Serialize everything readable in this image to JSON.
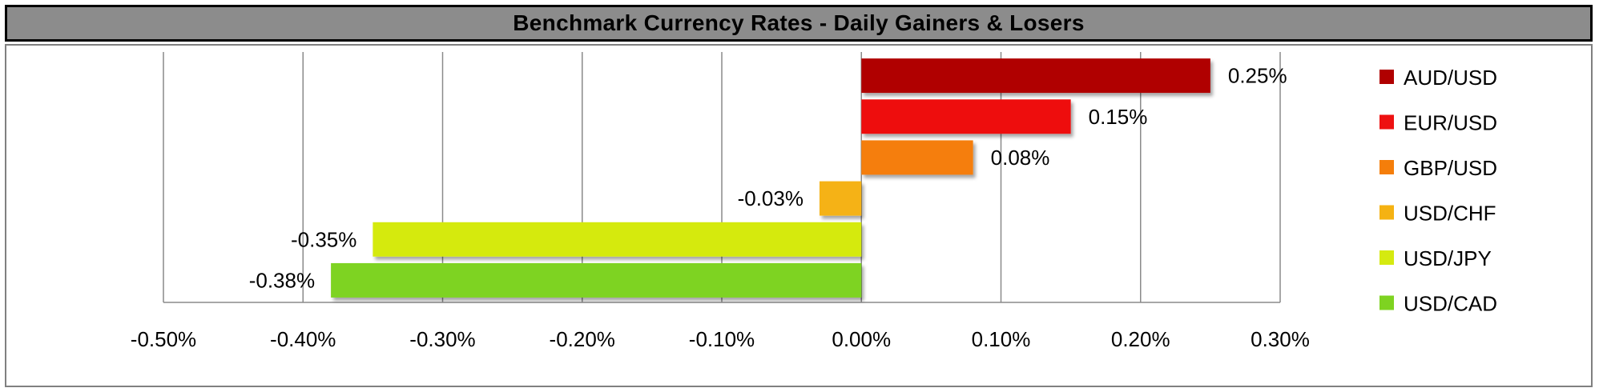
{
  "chart_data": {
    "type": "bar",
    "orientation": "horizontal",
    "title": "Benchmark Currency Rates - Daily Gainers & Losers",
    "categories": [
      "AUD/USD",
      "EUR/USD",
      "GBP/USD",
      "USD/CHF",
      "USD/JPY",
      "USD/CAD"
    ],
    "values": [
      0.25,
      0.15,
      0.08,
      -0.03,
      -0.35,
      -0.38
    ],
    "data_labels": [
      "0.25%",
      "0.15%",
      "0.08%",
      "-0.03%",
      "-0.35%",
      "-0.38%"
    ],
    "colors": [
      "#b00000",
      "#ee1111",
      "#f57e0a",
      "#f5b212",
      "#d5ea10",
      "#7ed321"
    ],
    "xlim": [
      -0.5,
      0.3
    ],
    "xticks": [
      -0.5,
      -0.4,
      -0.3,
      -0.2,
      -0.1,
      0.0,
      0.1,
      0.2,
      0.3
    ],
    "xtick_labels": [
      "-0.50%",
      "-0.40%",
      "-0.30%",
      "-0.20%",
      "-0.10%",
      "0.00%",
      "0.10%",
      "0.20%",
      "0.30%"
    ],
    "grid": true,
    "legend": {
      "position": "right",
      "entries": [
        "AUD/USD",
        "EUR/USD",
        "GBP/USD",
        "USD/CHF",
        "USD/JPY",
        "USD/CAD"
      ]
    }
  }
}
